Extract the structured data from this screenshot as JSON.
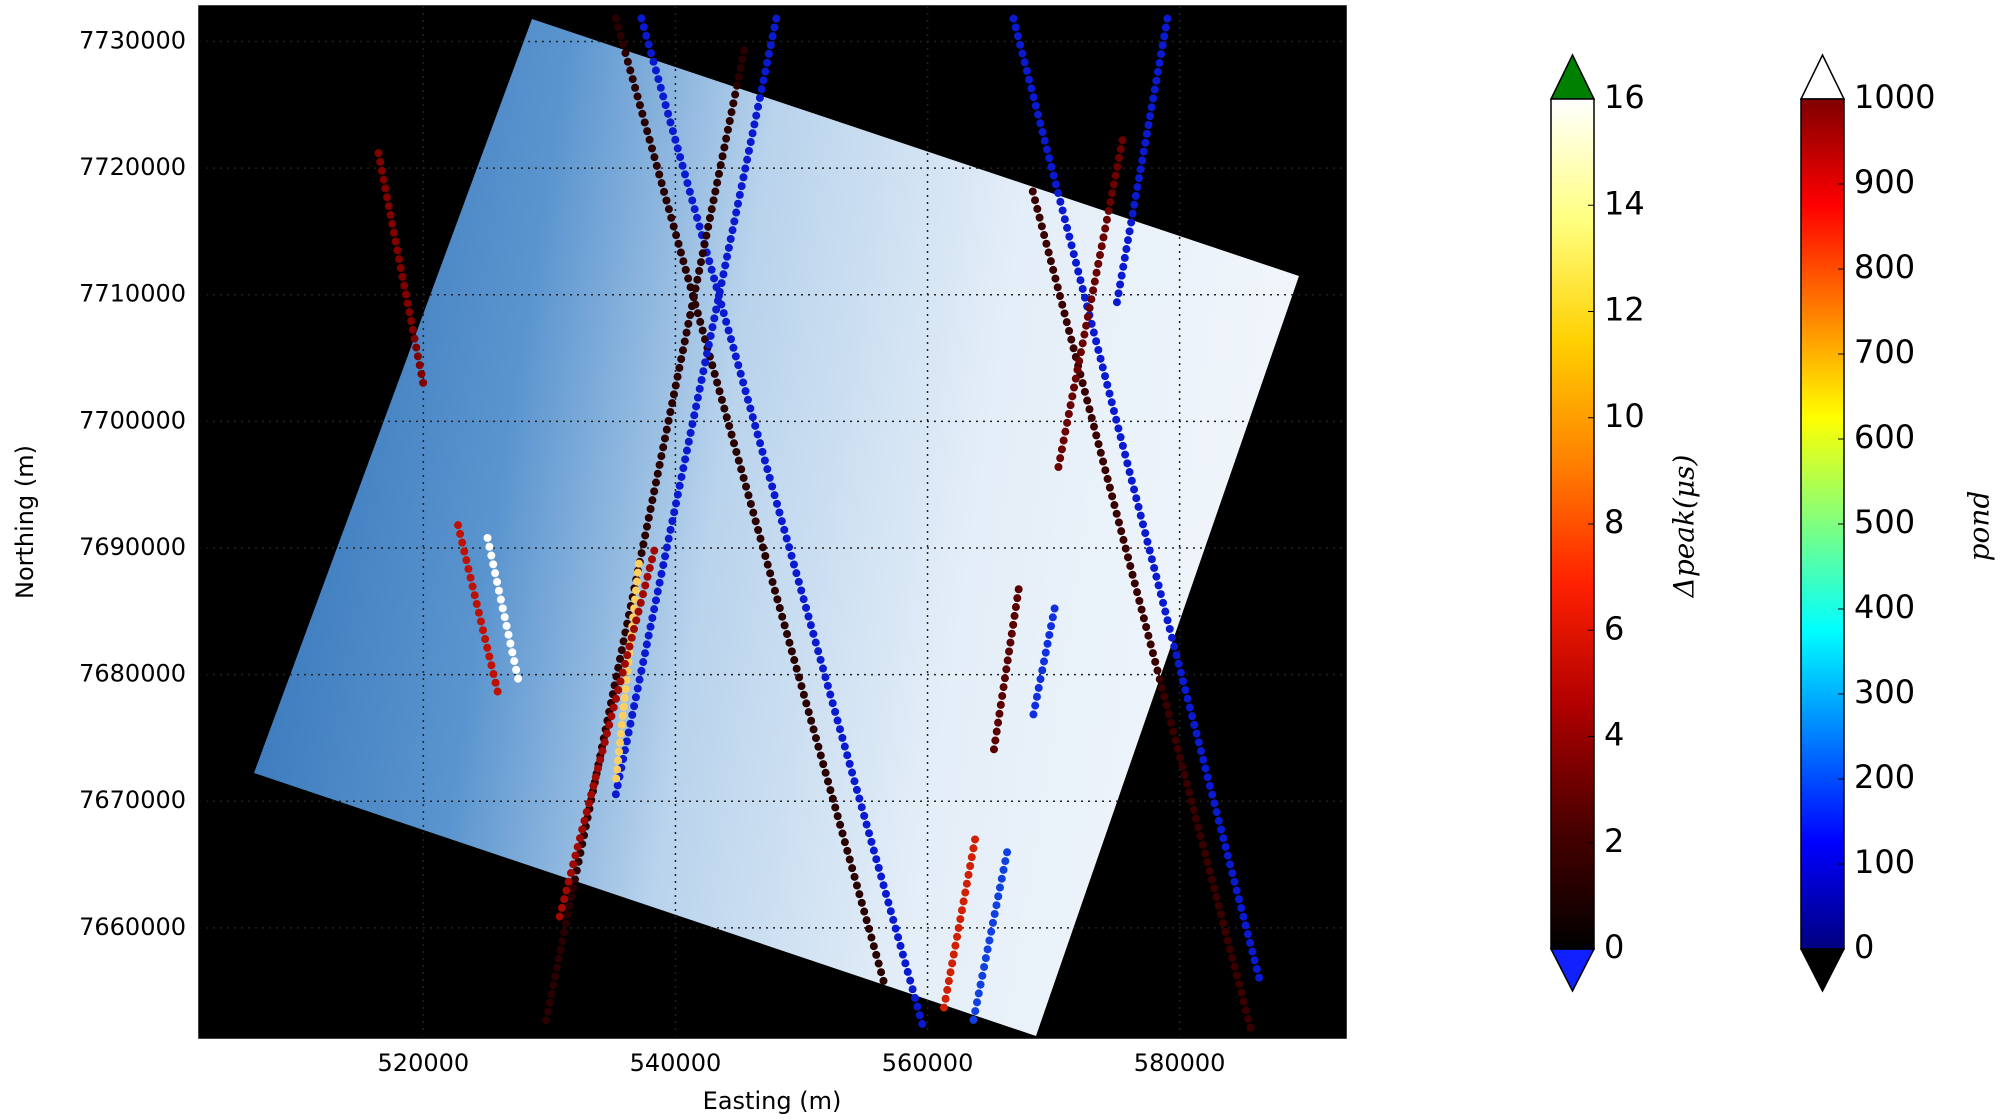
{
  "chart_data": [
    {
      "type": "scatter",
      "xlabel": "Easting (m)",
      "ylabel": "Northing (m)",
      "xlim": [
        502200,
        593200
      ],
      "ylim": [
        7651300,
        7732800
      ],
      "xticks": [
        520000,
        540000,
        560000,
        580000
      ],
      "yticks": [
        7660000,
        7670000,
        7680000,
        7690000,
        7700000,
        7710000,
        7720000,
        7730000
      ],
      "grid": true,
      "series": [
        {
          "color": "#2a0000",
          "x": [
            535270,
            556640
          ],
          "y": [
            7731820,
            7655330
          ]
        },
        {
          "color": "#0a1ad0",
          "x": [
            537300,
            559700
          ],
          "y": [
            7731820,
            7652000
          ]
        },
        {
          "color": "#0a1ad0",
          "x": [
            548000,
            535270
          ],
          "y": [
            7731800,
            7670530
          ]
        },
        {
          "color": "#2a0000",
          "x": [
            545450,
            529670
          ],
          "y": [
            7729290,
            7652300
          ]
        },
        {
          "color": "#0a1ad0",
          "x": [
            566820,
            586360
          ],
          "y": [
            7731800,
            7655840
          ]
        },
        {
          "color": "#3a0000",
          "x": [
            568350,
            585650
          ],
          "y": [
            7718150,
            7652000
          ]
        },
        {
          "color": "#0a1ad0",
          "x": [
            579030,
            574960
          ],
          "y": [
            7731800,
            7709030
          ]
        },
        {
          "color": "#6a0000",
          "x": [
            575470,
            570380
          ],
          "y": [
            7722200,
            7696360
          ]
        },
        {
          "color": "#c01000",
          "x": [
            522750,
            525900
          ],
          "y": [
            7691800,
            7678630
          ]
        },
        {
          "color": "#ffffff",
          "x": [
            525090,
            527630
          ],
          "y": [
            7690790,
            7679140
          ]
        },
        {
          "color": "#ffd060",
          "x": [
            537100,
            535270
          ],
          "y": [
            7688760,
            7671540
          ]
        },
        {
          "color": "#a00800",
          "x": [
            538320,
            530690
          ],
          "y": [
            7689790,
            7660400
          ]
        },
        {
          "color": "#5a0000",
          "x": [
            567230,
            565190
          ],
          "y": [
            7686740,
            7673570
          ]
        },
        {
          "color": "#1030e0",
          "x": [
            570080,
            568350
          ],
          "y": [
            7685220,
            7676600
          ]
        },
        {
          "color": "#d02000",
          "x": [
            563770,
            561230
          ],
          "y": [
            7666980,
            7653300
          ]
        },
        {
          "color": "#1040e0",
          "x": [
            566310,
            563560
          ],
          "y": [
            7665970,
            7652300
          ]
        },
        {
          "color": "#800000",
          "x": [
            516440,
            520000
          ],
          "y": [
            7721180,
            7702950
          ]
        }
      ]
    },
    {
      "type": "colorbar",
      "label": "Δpeak(μs)",
      "lim": [
        0,
        16
      ],
      "ticks": [
        0,
        2,
        4,
        6,
        8,
        10,
        12,
        14,
        16
      ],
      "colors": [
        "#000000",
        "#4a0000",
        "#b00000",
        "#ff2000",
        "#ff8000",
        "#ffd000",
        "#ffff80",
        "#ffffff"
      ],
      "under_color": "#1020ff",
      "over_color": "#008000"
    },
    {
      "type": "colorbar",
      "label": "pond",
      "lim": [
        0,
        1000
      ],
      "ticks": [
        0,
        100,
        200,
        300,
        400,
        500,
        600,
        700,
        800,
        900,
        1000
      ],
      "colors": [
        "#00007f",
        "#0000ff",
        "#007fff",
        "#00ffff",
        "#7fff7f",
        "#ffff00",
        "#ff7f00",
        "#ff0000",
        "#7f0000"
      ],
      "under_color": "#000000",
      "over_color": "#ffffff"
    }
  ]
}
